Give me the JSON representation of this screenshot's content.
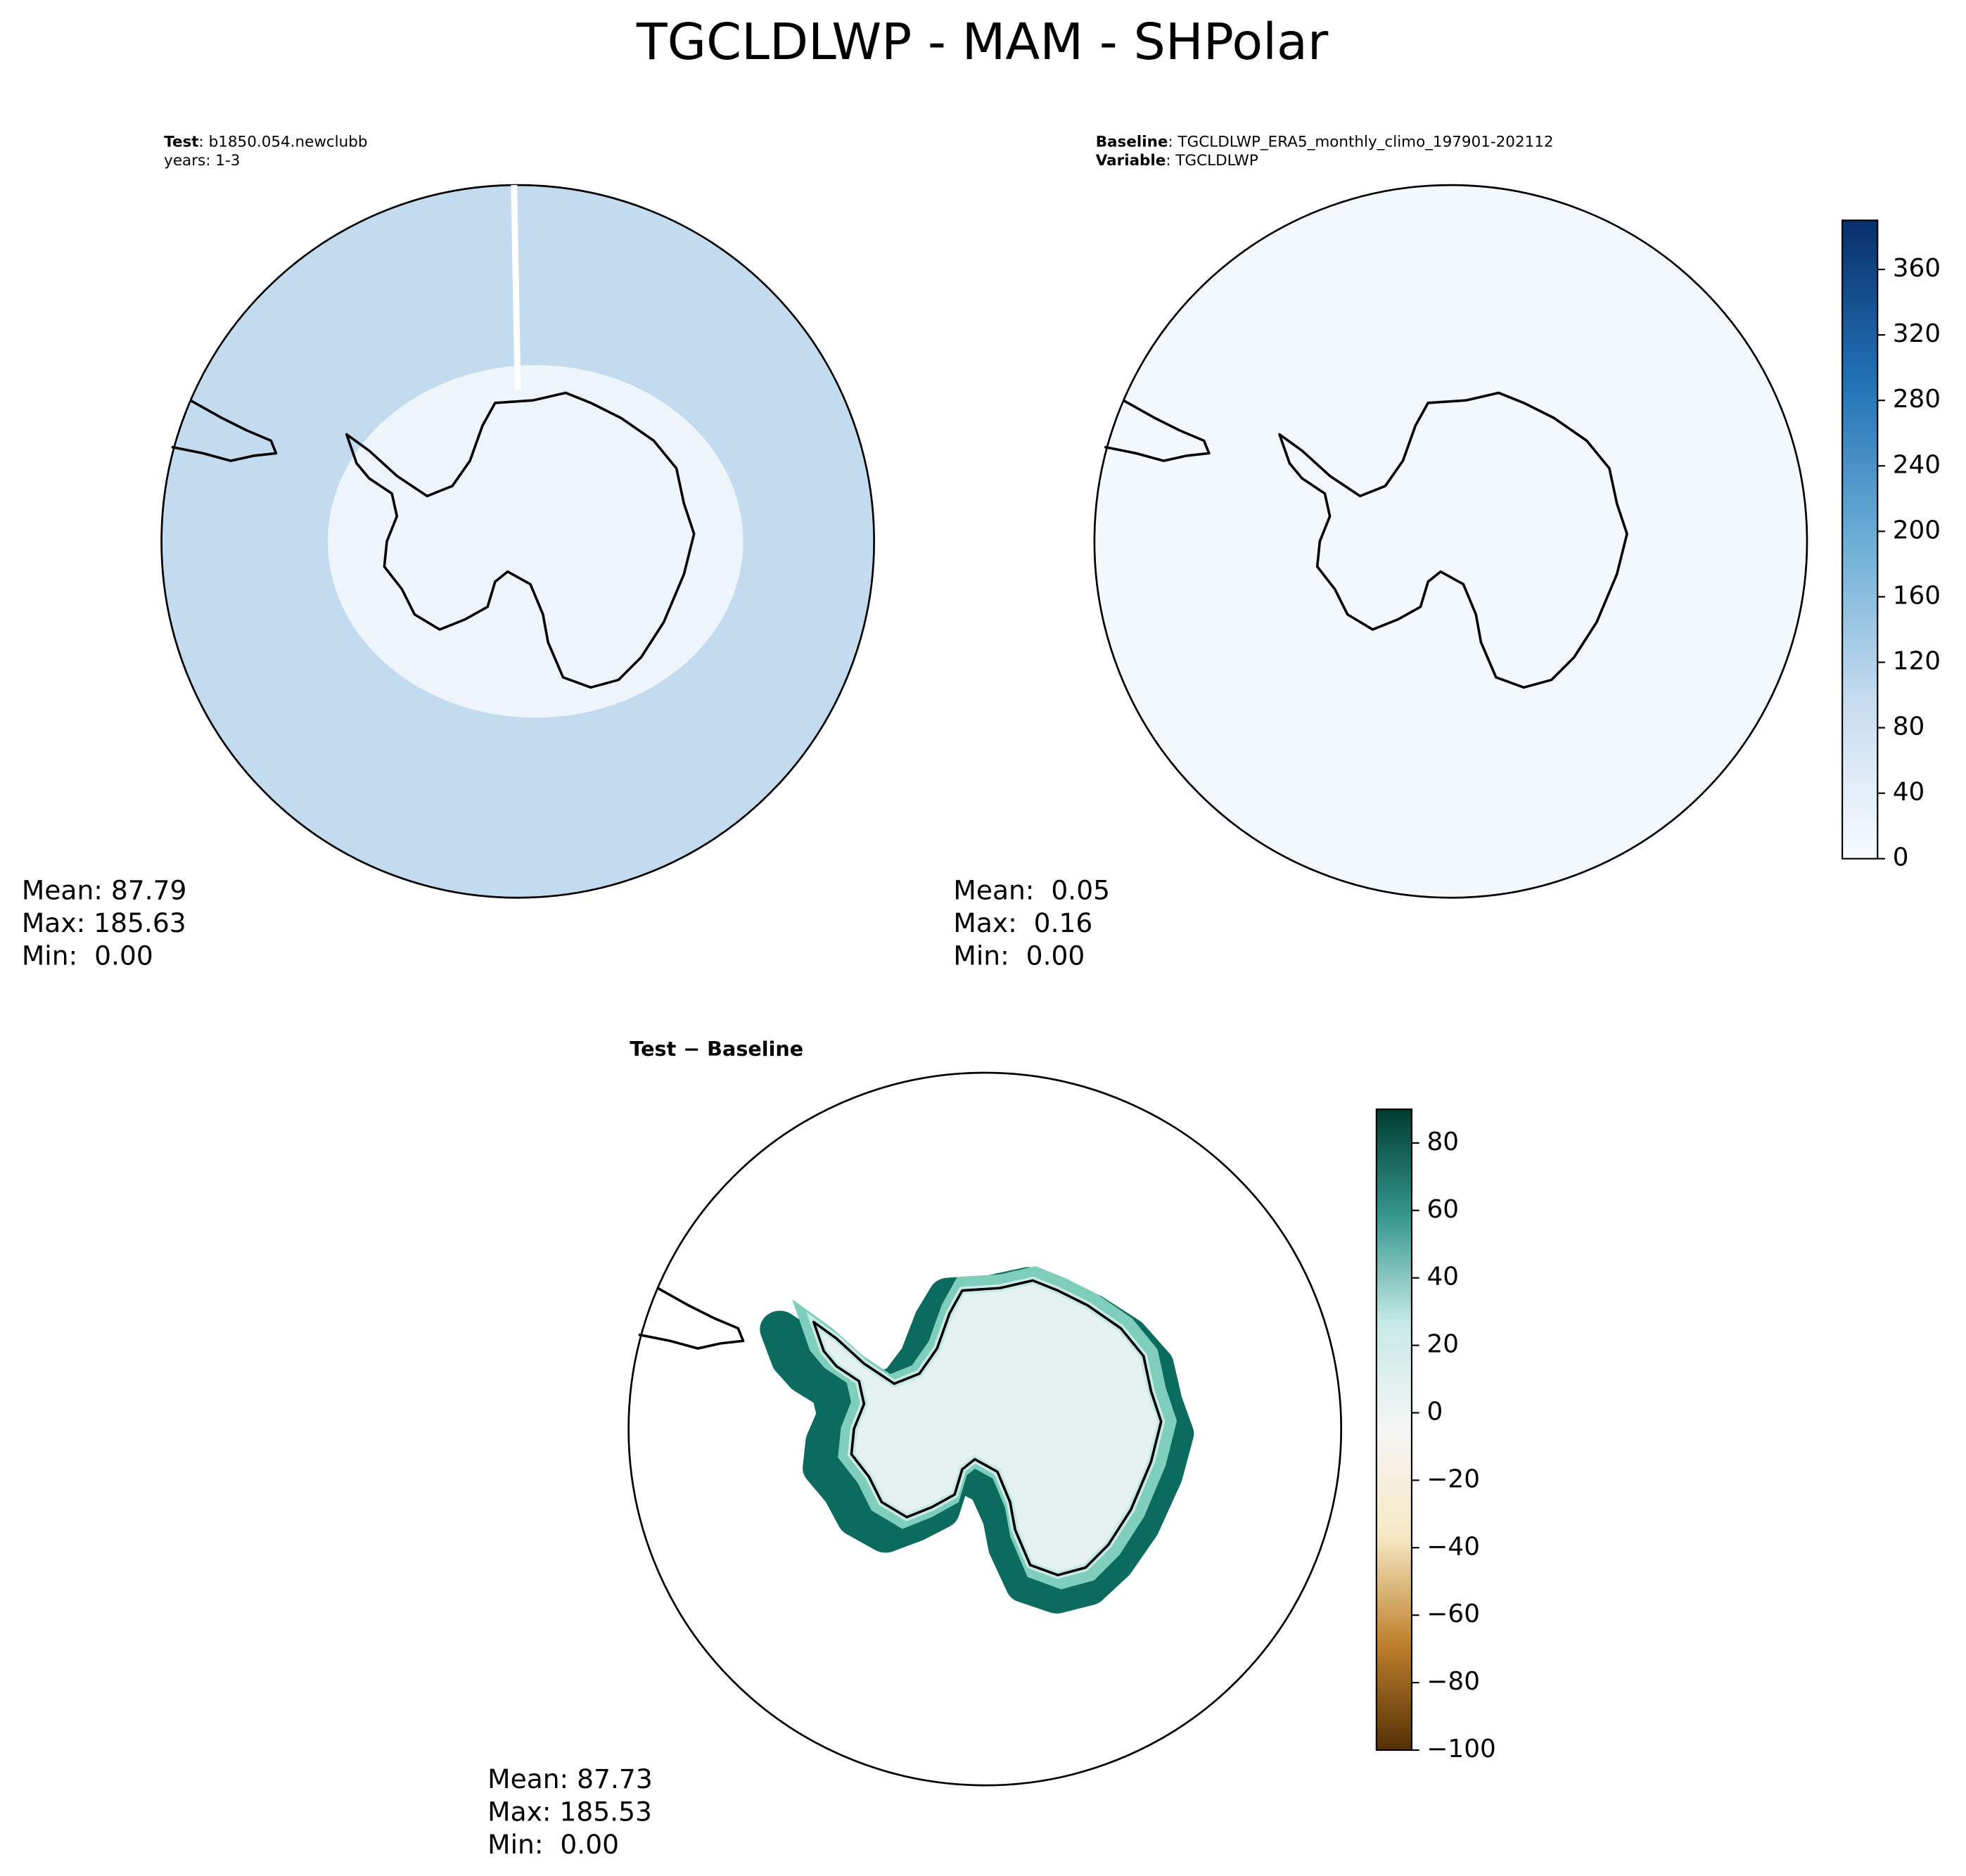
{
  "chart_data": {
    "type": "polar-map",
    "title": "TGCLDLWP - MAM - SHPolar",
    "panels": [
      {
        "label": "Test",
        "text": ": b1850.054.newclubb",
        "line2": "years: 1-3",
        "stats": [
          "Mean: 87.79",
          "Max: 185.63",
          "Min:  0.00"
        ],
        "color": "#c3dbee"
      },
      {
        "label": "Baseline",
        "text": ": TGCLDLWP_ERA5_monthly_climo_197901-202112",
        "label2": "Variable",
        "text2": ": TGCLDLWP",
        "stats": [
          "Mean:  0.05",
          "Max:  0.16",
          "Min:  0.00"
        ],
        "color": "#f3f8fd"
      },
      {
        "label": "Test − Baseline",
        "stats": [
          "Mean: 87.73",
          "Max: 185.53",
          "Min:  0.00"
        ],
        "color": "#0b6b5e"
      }
    ],
    "colorbars": [
      {
        "ylim": [
          0,
          390
        ],
        "yticks": [
          0,
          40,
          80,
          120,
          160,
          200,
          240,
          280,
          320,
          360
        ],
        "colors": [
          "#f7fbff",
          "#c6dbef",
          "#6baed6",
          "#2171b5",
          "#08306b"
        ]
      },
      {
        "ylim": [
          -100,
          90
        ],
        "yticks": [
          {
            "value": -100,
            "label": "−100"
          },
          {
            "value": -80,
            "label": "−80"
          },
          {
            "value": -60,
            "label": "−60"
          },
          {
            "value": -40,
            "label": "−40"
          },
          {
            "value": -20,
            "label": "−20"
          },
          0,
          20,
          40,
          60,
          80
        ],
        "colors": [
          "#543005",
          "#bf812d",
          "#f6e8c3",
          "#f5f5f5",
          "#c7eae5",
          "#35978f",
          "#003c30"
        ]
      }
    ]
  }
}
